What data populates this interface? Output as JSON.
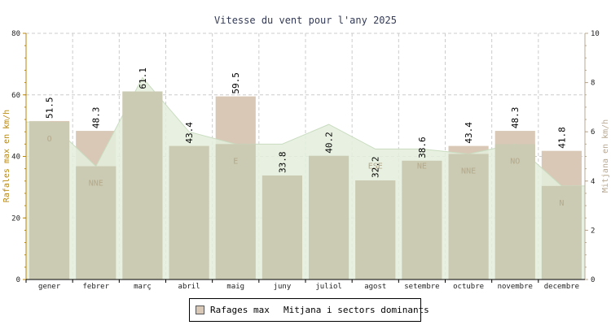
{
  "chart_data": {
    "type": "bar",
    "title": "Vitesse du vent pour l'any 2025",
    "categories": [
      "gener",
      "febrer",
      "març",
      "abril",
      "maig",
      "juny",
      "juliol",
      "agost",
      "setembre",
      "octubre",
      "novembre",
      "decembre"
    ],
    "series": [
      {
        "name": "Rafages max",
        "axis": "left",
        "values": [
          51.5,
          48.3,
          61.1,
          43.4,
          59.5,
          33.8,
          40.2,
          32.2,
          38.6,
          43.4,
          48.3,
          41.8
        ],
        "color": "#d8c8b5"
      },
      {
        "name": "Mitjana i sectors dominants",
        "axis": "right",
        "values": [
          6.4,
          4.6,
          8.2,
          6.0,
          5.5,
          5.5,
          6.3,
          5.3,
          5.3,
          5.1,
          5.5,
          3.8
        ],
        "sectors": [
          "O",
          "NNE",
          "",
          "",
          "E",
          "",
          "",
          "ESE",
          "NE",
          "NNE",
          "NO",
          "N"
        ],
        "color": "#e4efdc"
      }
    ],
    "ylabel": "Rafales max en km/h",
    "y2label": "Mitjana en km/h",
    "ylim": [
      0,
      80
    ],
    "y2lim": [
      0,
      10
    ],
    "yticks": [
      0,
      20,
      40,
      60,
      80
    ],
    "y2ticks": [
      0,
      2,
      4,
      6,
      8,
      10
    ],
    "grid": true,
    "legend_position": "bottom-center"
  },
  "legend": {
    "item1": "Rafages max",
    "item2": "Mitjana i sectors dominants"
  },
  "colors": {
    "bar_fill": "#d8c8b5",
    "area_fill": "#e4efdc",
    "overlap_fill": "#cbcab2",
    "grid": "#cccccc",
    "left_axis": "#b8860b"
  }
}
